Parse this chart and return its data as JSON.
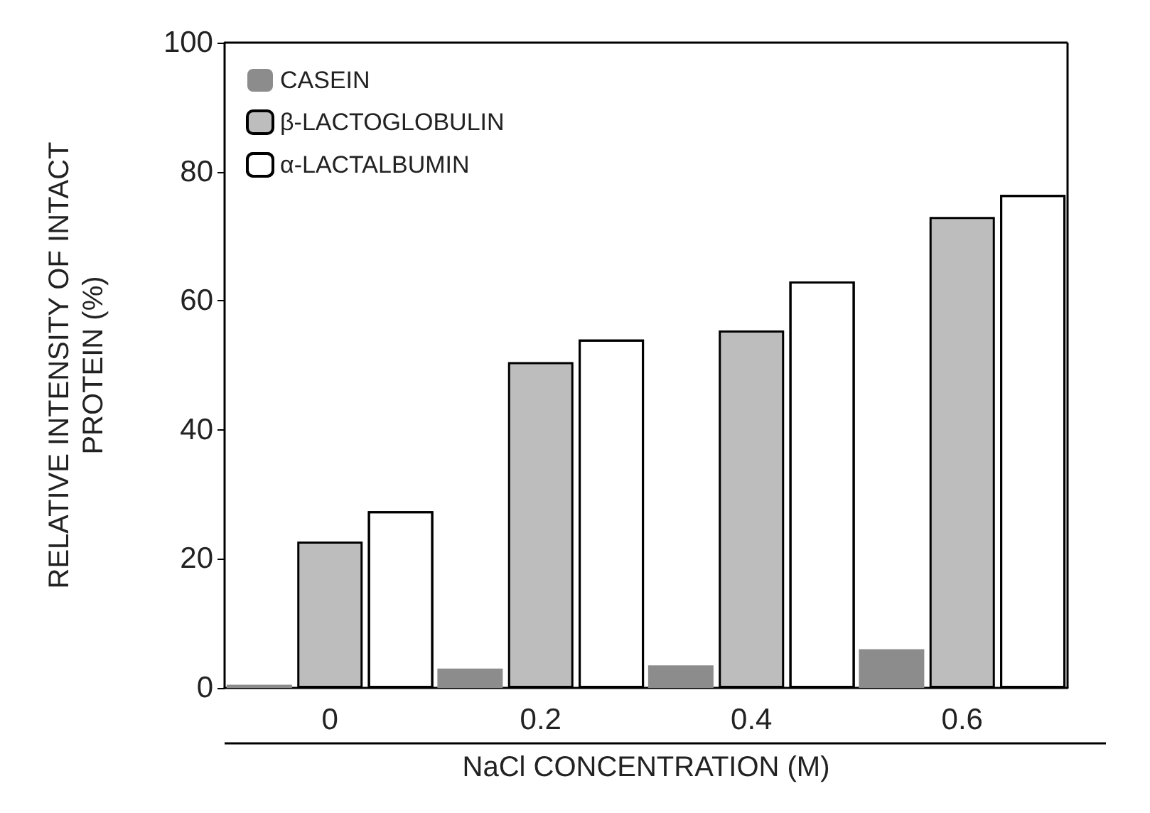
{
  "chart_data": {
    "type": "bar",
    "xlabel": "NaCl CONCENTRATION (M)",
    "ylabel": "RELATIVE INTENSITY OF INTACT\nPROTEIN (%)",
    "categories": [
      "0",
      "0.2",
      "0.4",
      "0.6"
    ],
    "series": [
      {
        "name": "CASEIN",
        "color": "#8c8c8c",
        "values": [
          0.5,
          3,
          3.5,
          6
        ]
      },
      {
        "name": "β-LACTOGLOBULIN",
        "color": "#bdbdbd",
        "values": [
          22.7,
          50.5,
          55.4,
          73
        ]
      },
      {
        "name": "α-LACTALBUMIN",
        "color": "#ffffff",
        "values": [
          27.4,
          54,
          63,
          76.4
        ]
      }
    ],
    "ylim": [
      0,
      100
    ],
    "yticks": [
      0,
      20,
      40,
      60,
      80,
      100
    ],
    "grid": false,
    "legend": "top left"
  }
}
